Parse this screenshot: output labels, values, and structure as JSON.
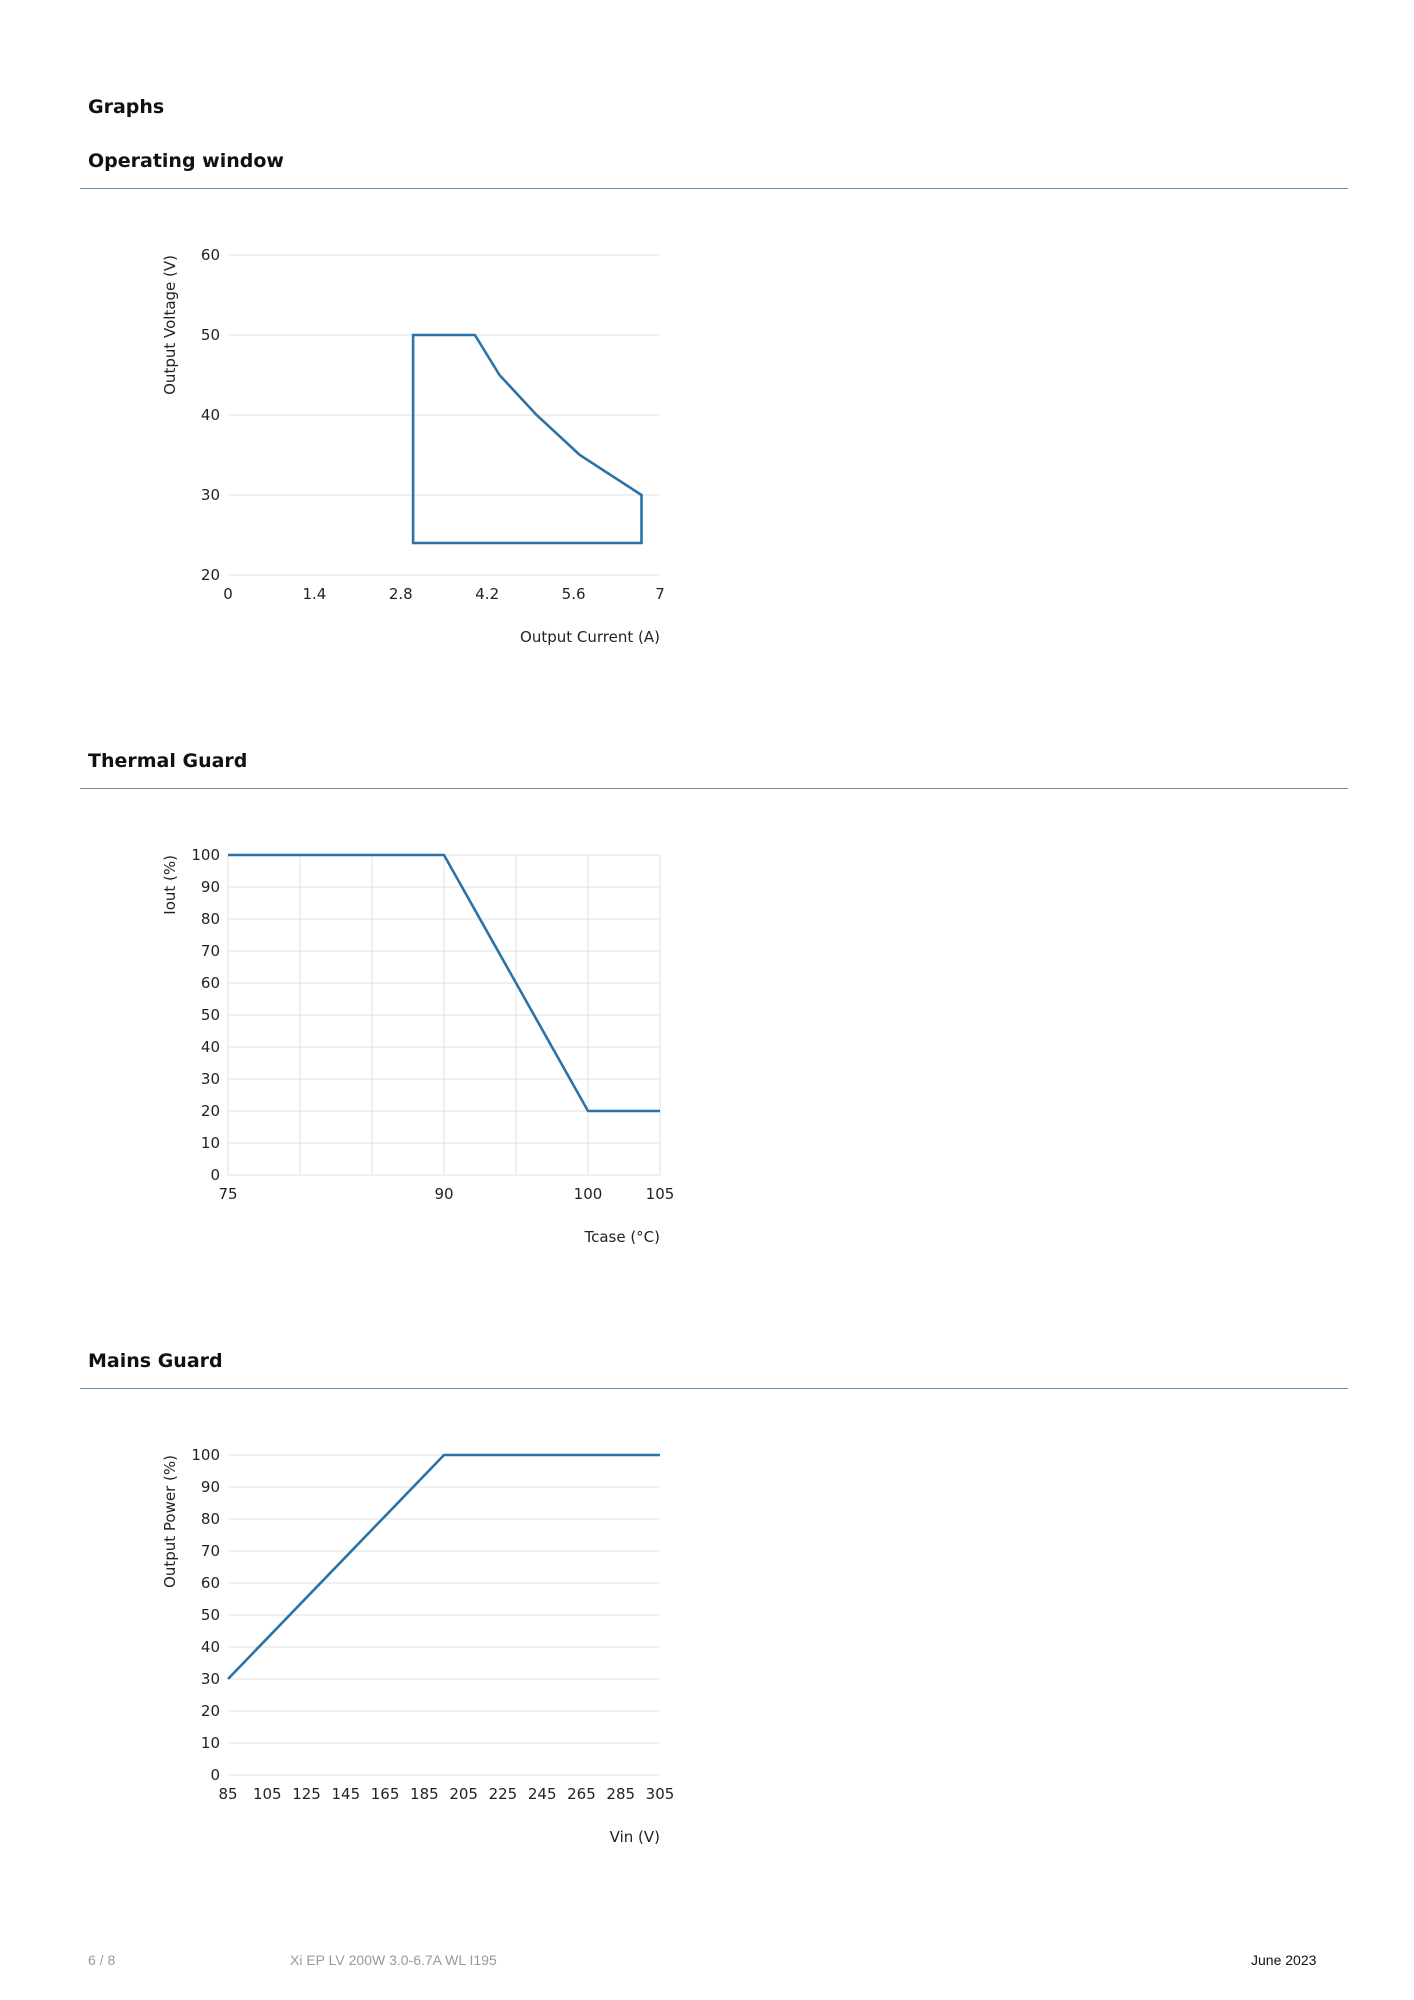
{
  "page": {
    "section_title": "Graphs",
    "charts_headings": [
      "Operating window",
      "Thermal Guard",
      "Mains Guard"
    ]
  },
  "chart_data": [
    {
      "type": "line",
      "title": "Operating window",
      "xlabel": "Output Current (A)",
      "ylabel": "Output Voltage (V)",
      "xlim": [
        0,
        7
      ],
      "ylim": [
        20,
        60
      ],
      "xticks": [
        0,
        1.4,
        2.8,
        4.2,
        5.6,
        7
      ],
      "xtick_labels": [
        "0",
        "1.4",
        "2.8",
        "4.2",
        "5.6",
        "7"
      ],
      "yticks": [
        20,
        30,
        40,
        50,
        60
      ],
      "ytick_labels": [
        "20",
        "30",
        "40",
        "50",
        "60"
      ],
      "grid": "horizontal",
      "closed": true,
      "series": [
        {
          "x": [
            3.0,
            4.0,
            4.4,
            5.0,
            5.7,
            6.7,
            6.7,
            3.0,
            3.0
          ],
          "y": [
            50,
            50,
            45,
            40,
            35,
            30,
            24,
            24,
            50
          ]
        }
      ]
    },
    {
      "type": "line",
      "title": "Thermal Guard",
      "xlabel": "Tcase (°C)",
      "ylabel": "Iout (%)",
      "xlim": [
        75,
        105
      ],
      "ylim": [
        0,
        100
      ],
      "xticks": [
        75,
        90,
        100,
        105
      ],
      "xtick_labels": [
        "75",
        "90",
        "100",
        "105"
      ],
      "vgrid": [
        75,
        80,
        85,
        90,
        95,
        100,
        105
      ],
      "yticks": [
        0,
        10,
        20,
        30,
        40,
        50,
        60,
        70,
        80,
        90,
        100
      ],
      "ytick_labels": [
        "0",
        "10",
        "20",
        "30",
        "40",
        "50",
        "60",
        "70",
        "80",
        "90",
        "100"
      ],
      "grid": "both",
      "series": [
        {
          "x": [
            75,
            90,
            100,
            105
          ],
          "y": [
            100,
            100,
            20,
            20
          ]
        }
      ]
    },
    {
      "type": "line",
      "title": "Mains Guard",
      "xlabel": "Vin (V)",
      "ylabel": "Output Power (%)",
      "xlim": [
        85,
        305
      ],
      "ylim": [
        0,
        100
      ],
      "xticks": [
        85,
        105,
        125,
        145,
        165,
        185,
        205,
        225,
        245,
        265,
        285,
        305
      ],
      "xtick_labels": [
        "85",
        "105",
        "125",
        "145",
        "165",
        "185",
        "205",
        "225",
        "245",
        "265",
        "285",
        "305"
      ],
      "yticks": [
        0,
        10,
        20,
        30,
        40,
        50,
        60,
        70,
        80,
        90,
        100
      ],
      "ytick_labels": [
        "0",
        "10",
        "20",
        "30",
        "40",
        "50",
        "60",
        "70",
        "80",
        "90",
        "100"
      ],
      "grid": "horizontal",
      "series": [
        {
          "x": [
            85,
            195,
            305
          ],
          "y": [
            30,
            100,
            100
          ]
        }
      ]
    }
  ],
  "footer": {
    "page_number": "6 / 8",
    "product_name": "Xi EP LV 200W 3.0-6.7A WL I195",
    "date": "June 2023"
  },
  "colors": {
    "line": "#2a73a8",
    "grid": "#e2e2e2",
    "rule": "#6e8fa5",
    "footer_muted": "#999999"
  }
}
